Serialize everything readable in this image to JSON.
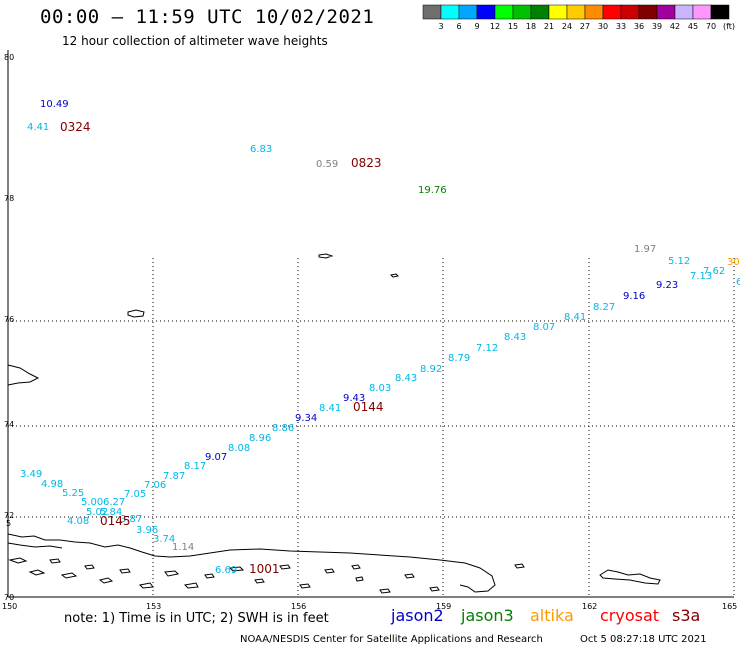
{
  "title": "00:00 – 11:59 UTC 10/02/2021",
  "subtitle": "12 hour collection of altimeter wave heights",
  "colorbar": {
    "labels": [
      "3",
      "6",
      "9",
      "12",
      "15",
      "18",
      "21",
      "24",
      "27",
      "30",
      "33",
      "36",
      "39",
      "42",
      "45",
      "70",
      "(ft)"
    ],
    "colors": [
      "#6e6e6e",
      "#00ffff",
      "#00a6ff",
      "#0000ff",
      "#00ff00",
      "#00c000",
      "#008000",
      "#ffff00",
      "#ffcc00",
      "#ff8c00",
      "#ff0000",
      "#cc0000",
      "#800000",
      "#a000a0",
      "#c8b4ff",
      "#ff96ff",
      "#000000"
    ]
  },
  "axes": {
    "lat_labels": [
      "80",
      "78",
      "76",
      "74",
      "72",
      "70"
    ],
    "lat_extra": "5",
    "lon_labels": [
      "150",
      "153",
      "156",
      "159",
      "162",
      "165"
    ]
  },
  "colors": {
    "gray": "#808080",
    "cyan": "#00b8e8",
    "blue": "#0000cc",
    "green": "#008000",
    "dark_red": "#800000",
    "orange": "#ff9900",
    "yellow": "#e8c800"
  },
  "observations": [
    {
      "text": "10.49",
      "color": "blue"
    },
    {
      "text": "4.41",
      "color": "cyan"
    },
    {
      "text": "6.83",
      "color": "cyan"
    },
    {
      "text": "0.59",
      "color": "gray"
    },
    {
      "text": "19.76",
      "color": "green"
    },
    {
      "text": "1.97",
      "color": "gray"
    },
    {
      "text": "5.12",
      "color": "cyan"
    },
    {
      "text": "30",
      "color": "orange"
    },
    {
      "text": "7.62",
      "color": "cyan"
    },
    {
      "text": "7.13",
      "color": "cyan"
    },
    {
      "text": "6",
      "color": "cyan"
    },
    {
      "text": "9.23",
      "color": "blue"
    },
    {
      "text": "9.16",
      "color": "blue"
    },
    {
      "text": "8.27",
      "color": "cyan"
    },
    {
      "text": "8.41",
      "color": "cyan"
    },
    {
      "text": "8.07",
      "color": "cyan"
    },
    {
      "text": "8.43",
      "color": "cyan"
    },
    {
      "text": "7.12",
      "color": "cyan"
    },
    {
      "text": "8.79",
      "color": "cyan"
    },
    {
      "text": "8.92",
      "color": "cyan"
    },
    {
      "text": "8.43",
      "color": "cyan"
    },
    {
      "text": "8.03",
      "color": "cyan"
    },
    {
      "text": "9.43",
      "color": "blue"
    },
    {
      "text": "8.41",
      "color": "cyan"
    },
    {
      "text": "9.34",
      "color": "blue"
    },
    {
      "text": "8.86",
      "color": "cyan"
    },
    {
      "text": "8.96",
      "color": "cyan"
    },
    {
      "text": "8.08",
      "color": "cyan"
    },
    {
      "text": "9.07",
      "color": "blue"
    },
    {
      "text": "8.17",
      "color": "cyan"
    },
    {
      "text": "7.87",
      "color": "cyan"
    },
    {
      "text": "7.06",
      "color": "cyan"
    },
    {
      "text": "7.05",
      "color": "cyan"
    },
    {
      "text": "3.49",
      "color": "cyan"
    },
    {
      "text": "4.98",
      "color": "cyan"
    },
    {
      "text": "5.25",
      "color": "cyan"
    },
    {
      "text": "5.00",
      "color": "cyan"
    },
    {
      "text": "6.27",
      "color": "cyan"
    },
    {
      "text": "5.02",
      "color": "cyan"
    },
    {
      "text": "5.84",
      "color": "cyan"
    },
    {
      "text": "4.08",
      "color": "cyan"
    },
    {
      "text": "3.87",
      "color": "cyan"
    },
    {
      "text": "3.96",
      "color": "cyan"
    },
    {
      "text": "3.74",
      "color": "cyan"
    },
    {
      "text": "1.14",
      "color": "gray"
    },
    {
      "text": "6.69",
      "color": "cyan"
    }
  ],
  "time_labels": [
    "0324",
    "0823",
    "0144",
    "0145",
    "1001"
  ],
  "note": "note: 1) Time is in UTC; 2) SWH is in feet",
  "satellites": [
    {
      "name": "jason2",
      "color": "#0000cc"
    },
    {
      "name": "jason3",
      "color": "#008000"
    },
    {
      "name": "altika",
      "color": "#ff9900"
    },
    {
      "name": "cryosat",
      "color": "#ff0000"
    },
    {
      "name": "s3a",
      "color": "#800000"
    }
  ],
  "credit": "NOAA/NESDIS Center for Satellite Applications and Research",
  "credit_time": "Oct  5 08:27:18 UTC 2021"
}
